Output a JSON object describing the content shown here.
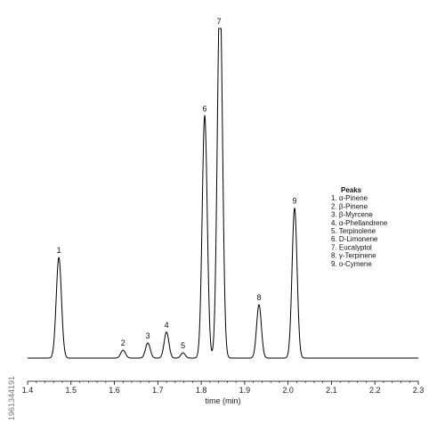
{
  "chart_data": {
    "type": "line",
    "xlabel": "time (min)",
    "xlim": [
      1.4,
      2.3
    ],
    "xticks": [
      "1.4",
      "1.5",
      "1.6",
      "1.7",
      "1.8",
      "1.9",
      "2.0",
      "2.1",
      "2.2",
      "2.3"
    ],
    "ylim": [
      0,
      100
    ],
    "grid": false,
    "peaks": [
      {
        "label": "1",
        "x": 1.472,
        "height": 30.5,
        "width": 0.006
      },
      {
        "label": "2",
        "x": 1.62,
        "height": 2.4,
        "width": 0.0055
      },
      {
        "label": "3",
        "x": 1.677,
        "height": 4.6,
        "width": 0.0055
      },
      {
        "label": "4",
        "x": 1.72,
        "height": 7.9,
        "width": 0.0055
      },
      {
        "label": "5",
        "x": 1.758,
        "height": 1.6,
        "width": 0.005
      },
      {
        "label": "6",
        "x": 1.808,
        "height": 73.5,
        "width": 0.0058
      },
      {
        "label": "7",
        "x": 1.843,
        "height": 100,
        "width": 0.006,
        "offscale": true
      },
      {
        "label": "8",
        "x": 1.933,
        "height": 16.2,
        "width": 0.0055
      },
      {
        "label": "9",
        "x": 2.015,
        "height": 45.5,
        "width": 0.0058
      }
    ],
    "legend": {
      "placement": "right",
      "title": "Peaks",
      "entries": [
        "1. α-Pinene",
        "2. β-Pinene",
        "3. β-Myrcene",
        "4. α-Phellandrene",
        "5. Terpinolene",
        "6. D-Limonene",
        "7. Eucalyptol",
        "8. γ-Terpinene",
        "9. o-Cymene"
      ]
    },
    "line_color": "#000000"
  },
  "watermark": {
    "id": "1961344191"
  }
}
